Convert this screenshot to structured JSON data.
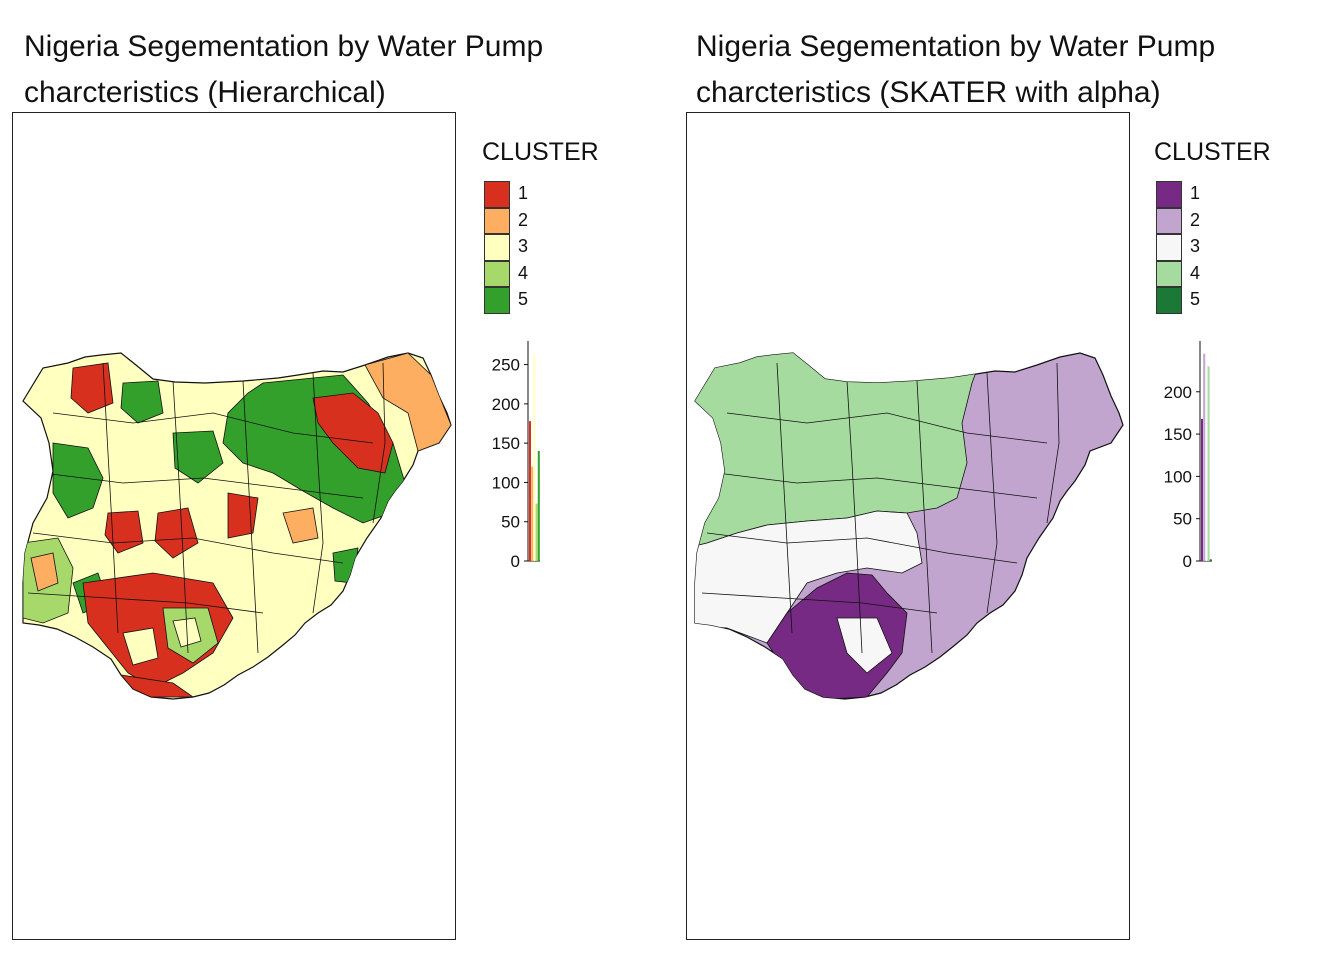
{
  "panels": [
    {
      "title_line1": "Nigeria Segementation by Water Pump",
      "title_line2": "charcteristics (Hierarchical)",
      "legend": {
        "title": "CLUSTER",
        "items": [
          {
            "label": "1",
            "color": "#d7301f"
          },
          {
            "label": "2",
            "color": "#fdae61"
          },
          {
            "label": "3",
            "color": "#ffffbf"
          },
          {
            "label": "4",
            "color": "#a6d96a"
          },
          {
            "label": "5",
            "color": "#33a02c"
          }
        ]
      },
      "histogram": {
        "ticks": [
          "0",
          "50",
          "100",
          "150",
          "200",
          "250"
        ],
        "ylim": [
          0,
          280
        ],
        "bars": [
          {
            "cluster": "1",
            "value": 178,
            "color": "#d7301f"
          },
          {
            "cluster": "2",
            "value": 120,
            "color": "#fdae61"
          },
          {
            "cluster": "3",
            "value": 262,
            "color": "#ffffbf"
          },
          {
            "cluster": "4",
            "value": 73,
            "color": "#a6d96a"
          },
          {
            "cluster": "5",
            "value": 140,
            "color": "#33a02c"
          }
        ]
      }
    },
    {
      "title_line1": "Nigeria Segementation by Water Pump",
      "title_line2": "charcteristics (SKATER with alpha)",
      "legend": {
        "title": "CLUSTER",
        "items": [
          {
            "label": "1",
            "color": "#762a83"
          },
          {
            "label": "2",
            "color": "#c2a5cf"
          },
          {
            "label": "3",
            "color": "#f7f7f7"
          },
          {
            "label": "4",
            "color": "#a6dba0"
          },
          {
            "label": "5",
            "color": "#1b7837"
          }
        ]
      },
      "histogram": {
        "ticks": [
          "0",
          "50",
          "100",
          "150",
          "200"
        ],
        "ylim": [
          0,
          260
        ],
        "bars": [
          {
            "cluster": "1",
            "value": 168,
            "color": "#762a83"
          },
          {
            "cluster": "2",
            "value": 245,
            "color": "#c2a5cf"
          },
          {
            "cluster": "3",
            "value": 235,
            "color": "#f7f7f7"
          },
          {
            "cluster": "4",
            "value": 230,
            "color": "#a6dba0"
          },
          {
            "cluster": "5",
            "value": 2,
            "color": "#1b7837"
          }
        ]
      }
    }
  ]
}
